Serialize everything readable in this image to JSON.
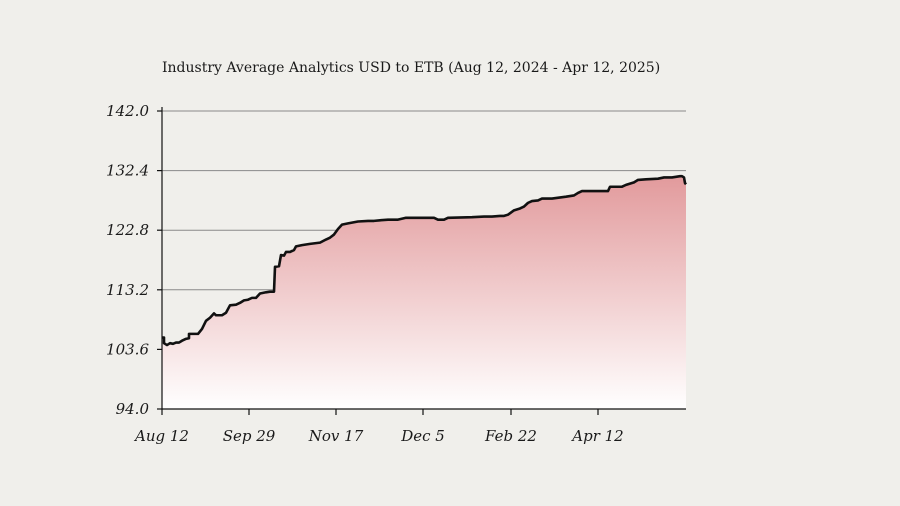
{
  "chart_data": {
    "type": "area",
    "title": "Industry Average Analytics  USD to ETB (Aug 12, 2024 - Apr 12, 2025)",
    "xlabel": "",
    "ylabel": "",
    "ylim": [
      94.0,
      142.0
    ],
    "yticks": [
      "142.0",
      "132.4",
      "122.8",
      "113.2",
      "103.6",
      "94.0"
    ],
    "xticks": [
      "Aug 12",
      "Sep 29",
      "Nov 17",
      "Dec 5",
      "Feb 22",
      "Apr 12"
    ],
    "grid": true,
    "colors": {
      "line": "#111111",
      "fill_top": "#e29a9c",
      "fill_bottom": "#ffffff",
      "grid": "#8a8a8a"
    },
    "series": [
      {
        "values": [
          [
            0,
            105.5
          ],
          [
            2,
            105.5
          ],
          [
            2,
            104.6
          ],
          [
            5,
            104.3
          ],
          [
            8,
            104.6
          ],
          [
            11,
            104.5
          ],
          [
            14,
            104.7
          ],
          [
            17,
            104.7
          ],
          [
            20,
            105.0
          ],
          [
            24,
            105.3
          ],
          [
            27,
            105.4
          ],
          [
            27,
            106.1
          ],
          [
            30,
            106.1
          ],
          [
            36,
            106.1
          ],
          [
            40,
            106.9
          ],
          [
            44,
            108.2
          ],
          [
            48,
            108.7
          ],
          [
            52,
            109.4
          ],
          [
            54,
            109.1
          ],
          [
            60,
            109.1
          ],
          [
            64,
            109.5
          ],
          [
            68,
            110.7
          ],
          [
            74,
            110.8
          ],
          [
            78,
            111.1
          ],
          [
            82,
            111.5
          ],
          [
            86,
            111.6
          ],
          [
            90,
            111.9
          ],
          [
            94,
            111.9
          ],
          [
            98,
            112.6
          ],
          [
            104,
            112.8
          ],
          [
            108,
            112.9
          ],
          [
            112,
            112.9
          ],
          [
            113,
            116.9
          ],
          [
            117,
            117.0
          ],
          [
            119,
            118.8
          ],
          [
            122,
            118.7
          ],
          [
            124,
            119.3
          ],
          [
            128,
            119.3
          ],
          [
            132,
            119.6
          ],
          [
            134,
            120.2
          ],
          [
            140,
            120.4
          ],
          [
            148,
            120.6
          ],
          [
            158,
            120.8
          ],
          [
            164,
            121.3
          ],
          [
            168,
            121.6
          ],
          [
            172,
            122.1
          ],
          [
            176,
            123.0
          ],
          [
            180,
            123.7
          ],
          [
            186,
            123.9
          ],
          [
            196,
            124.2
          ],
          [
            206,
            124.3
          ],
          [
            212,
            124.3
          ],
          [
            218,
            124.4
          ],
          [
            226,
            124.5
          ],
          [
            236,
            124.5
          ],
          [
            244,
            124.8
          ],
          [
            264,
            124.8
          ],
          [
            272,
            124.8
          ],
          [
            276,
            124.5
          ],
          [
            282,
            124.5
          ],
          [
            286,
            124.8
          ],
          [
            310,
            124.9
          ],
          [
            322,
            125.0
          ],
          [
            330,
            125.0
          ],
          [
            338,
            125.1
          ],
          [
            342,
            125.1
          ],
          [
            346,
            125.3
          ],
          [
            352,
            126.0
          ],
          [
            358,
            126.3
          ],
          [
            362,
            126.6
          ],
          [
            366,
            127.2
          ],
          [
            370,
            127.5
          ],
          [
            376,
            127.6
          ],
          [
            380,
            127.9
          ],
          [
            390,
            127.9
          ],
          [
            404,
            128.2
          ],
          [
            412,
            128.4
          ],
          [
            416,
            128.8
          ],
          [
            420,
            129.1
          ],
          [
            436,
            129.1
          ],
          [
            446,
            129.1
          ],
          [
            448,
            129.8
          ],
          [
            458,
            129.8
          ],
          [
            460,
            129.8
          ],
          [
            464,
            130.1
          ],
          [
            472,
            130.5
          ],
          [
            476,
            130.9
          ],
          [
            484,
            131.0
          ],
          [
            496,
            131.1
          ],
          [
            502,
            131.3
          ],
          [
            510,
            131.3
          ],
          [
            518,
            131.5
          ],
          [
            520,
            131.5
          ],
          [
            522,
            131.3
          ],
          [
            523,
            130.4
          ],
          [
            524,
            130.2
          ]
        ]
      }
    ]
  }
}
